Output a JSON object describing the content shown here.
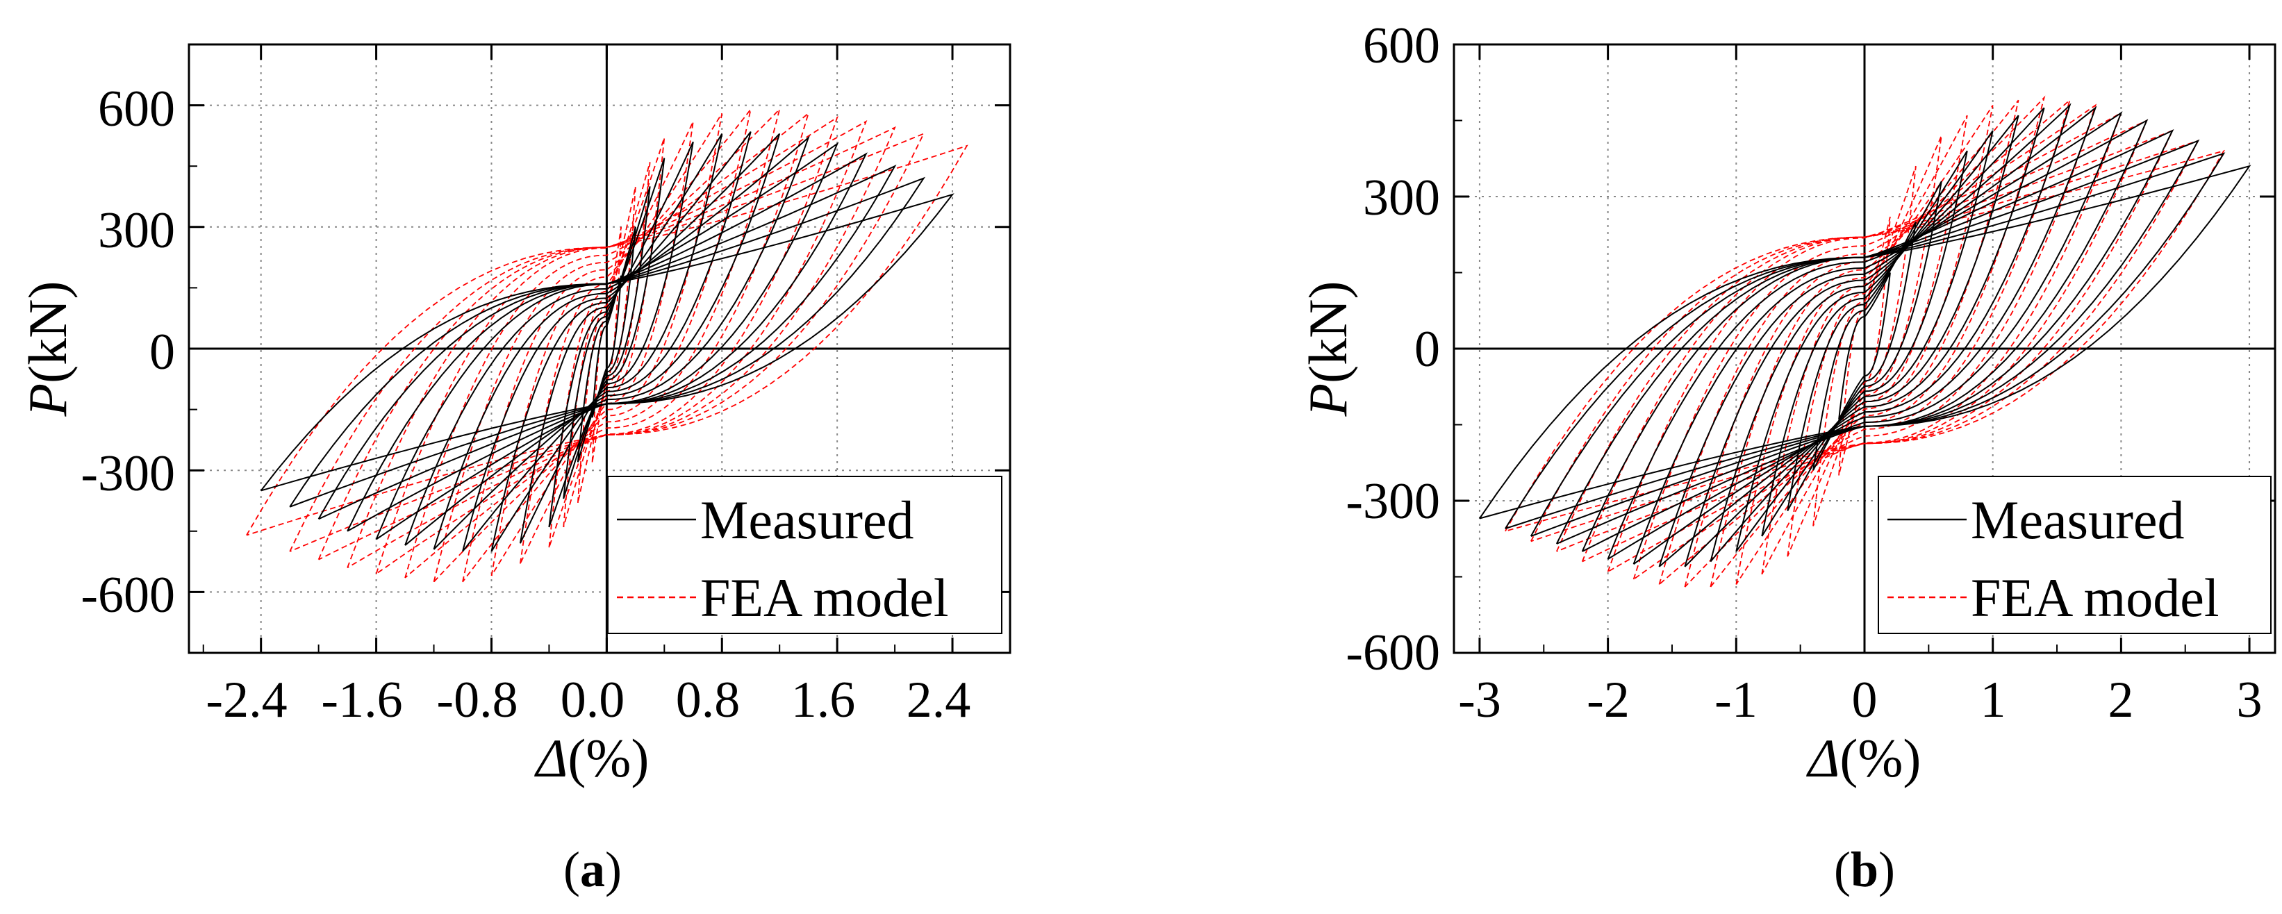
{
  "chart_data": [
    {
      "type": "line",
      "panel_label": "a",
      "xlabel_symbol": "Δ",
      "xlabel_unit": "(%)",
      "ylabel_symbol": "P",
      "ylabel_unit": "(kN)",
      "xlim": [
        -2.9,
        2.8
      ],
      "ylim": [
        -750,
        750
      ],
      "x_ticks": [
        -2.4,
        -1.6,
        -0.8,
        0.0,
        0.8,
        1.6,
        2.4
      ],
      "x_tick_labels": [
        "-2.4",
        "-1.6",
        "-0.8",
        "0.0",
        "0.8",
        "1.6",
        "2.4"
      ],
      "y_ticks": [
        -600,
        -300,
        0,
        300,
        600
      ],
      "y_tick_labels": [
        "-600",
        "-300",
        "0",
        "300",
        "600"
      ],
      "grid": true,
      "legend_position": "bottom-right",
      "series": [
        {
          "name": "Measured",
          "color": "#000000",
          "style": "solid",
          "cycle_drifts": [
            0.1,
            0.2,
            0.3,
            0.4,
            0.6,
            0.8,
            1.0,
            1.2,
            1.4,
            1.6,
            1.8,
            2.0,
            2.2,
            2.4
          ],
          "peak_loads_positive": [
            180,
            300,
            400,
            470,
            510,
            530,
            535,
            530,
            520,
            505,
            480,
            450,
            420,
            380
          ],
          "peak_loads_negative": [
            -170,
            -280,
            -370,
            -440,
            -480,
            -500,
            -500,
            -495,
            -485,
            -470,
            -450,
            -420,
            -390,
            -350
          ],
          "intercept_load": 160,
          "intercept_drift": 0.45
        },
        {
          "name": "FEA model",
          "color": "#ff0000",
          "style": "dashed",
          "cycle_drifts": [
            0.1,
            0.2,
            0.3,
            0.4,
            0.6,
            0.8,
            1.0,
            1.2,
            1.4,
            1.6,
            1.8,
            2.0,
            2.2,
            2.5
          ],
          "peak_loads_positive": [
            300,
            400,
            460,
            520,
            560,
            580,
            590,
            590,
            580,
            570,
            560,
            545,
            530,
            500
          ],
          "peak_loads_negative": [
            -280,
            -380,
            -440,
            -490,
            -530,
            -560,
            -575,
            -575,
            -565,
            -555,
            -540,
            -520,
            -500,
            -460
          ],
          "intercept_load": 250,
          "intercept_drift": 0.75
        }
      ]
    },
    {
      "type": "line",
      "panel_label": "b",
      "xlabel_symbol": "Δ",
      "xlabel_unit": "(%)",
      "ylabel_symbol": "P",
      "ylabel_unit": "(kN)",
      "xlim": [
        -3.2,
        3.2
      ],
      "ylim": [
        -600,
        600
      ],
      "x_ticks": [
        -3,
        -2,
        -1,
        0,
        1,
        2,
        3
      ],
      "x_tick_labels": [
        "-3",
        "-2",
        "-1",
        "0",
        "1",
        "2",
        "3"
      ],
      "y_ticks": [
        -600,
        -300,
        0,
        300,
        600
      ],
      "y_tick_labels": [
        "-600",
        "-300",
        "0",
        "300",
        "600"
      ],
      "grid": true,
      "legend_position": "bottom-right",
      "series": [
        {
          "name": "Measured",
          "color": "#000000",
          "style": "solid",
          "cycle_drifts": [
            0.2,
            0.4,
            0.6,
            0.8,
            1.0,
            1.2,
            1.4,
            1.6,
            1.8,
            2.0,
            2.2,
            2.4,
            2.6,
            2.8,
            3.0
          ],
          "peak_loads_positive": [
            150,
            250,
            330,
            390,
            430,
            460,
            475,
            480,
            475,
            465,
            450,
            430,
            410,
            385,
            360
          ],
          "peak_loads_negative": [
            -140,
            -240,
            -320,
            -370,
            -400,
            -420,
            -430,
            -430,
            -425,
            -415,
            -400,
            -385,
            -370,
            -355,
            -335
          ],
          "intercept_load": 180,
          "intercept_drift": 0.55
        },
        {
          "name": "FEA model",
          "color": "#ff0000",
          "style": "dashed",
          "cycle_drifts": [
            0.2,
            0.4,
            0.6,
            0.8,
            1.0,
            1.2,
            1.4,
            1.6,
            1.8,
            2.0,
            2.2,
            2.4,
            2.6,
            2.8
          ],
          "peak_loads_positive": [
            260,
            360,
            420,
            460,
            480,
            490,
            495,
            490,
            480,
            465,
            450,
            430,
            410,
            390
          ],
          "peak_loads_negative": [
            -250,
            -350,
            -410,
            -445,
            -465,
            -470,
            -470,
            -465,
            -455,
            -440,
            -420,
            -400,
            -380,
            -360
          ],
          "intercept_load": 220,
          "intercept_drift": 0.75
        }
      ]
    }
  ]
}
